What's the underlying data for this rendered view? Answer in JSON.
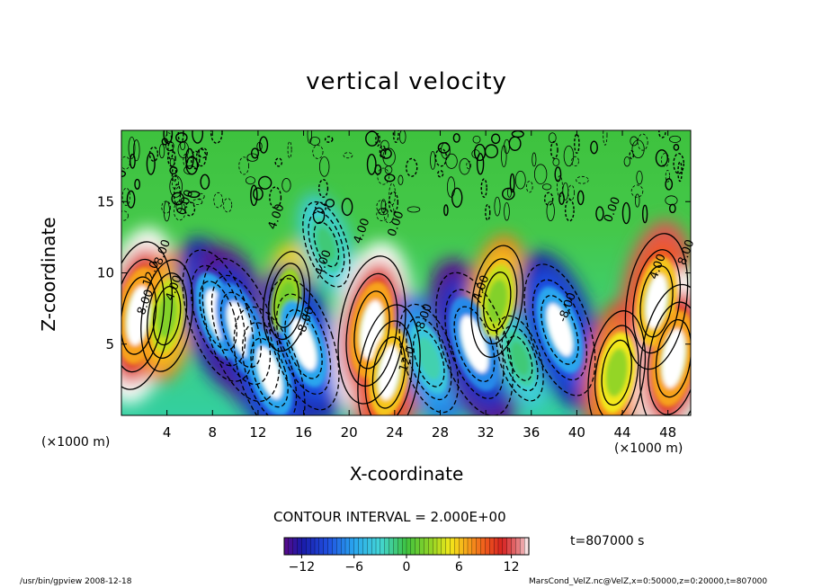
{
  "chart_data": {
    "type": "heatmap",
    "title": "vertical velocity",
    "xlabel": "X-coordinate",
    "ylabel": "Z-coordinate",
    "x_unit": "(×1000 m)",
    "y_unit": "(×1000 m)",
    "xlim": [
      0,
      50
    ],
    "ylim": [
      0,
      20
    ],
    "x_ticks": [
      4,
      8,
      12,
      16,
      20,
      24,
      28,
      32,
      36,
      40,
      44,
      48
    ],
    "y_ticks": [
      5,
      10,
      15
    ],
    "contour_interval_label": "CONTOUR INTERVAL = 2.000E+00",
    "contour_labels": [
      "4.00",
      "8.00",
      "12.0",
      "0.00",
      "-4.00",
      "-8.00",
      "4.00",
      "0.00",
      "8.00",
      "12.0",
      "4.00",
      "-8.00",
      "0.00",
      "4.00",
      "8.00",
      "8.00",
      "4.00"
    ],
    "colorbar": {
      "min": -14,
      "max": 14,
      "ticks": [
        "−12",
        "−6",
        "0",
        "6",
        "12"
      ]
    },
    "cells": [
      {
        "x": 1.5,
        "z": 7,
        "w": 14
      },
      {
        "x": 4,
        "z": 7,
        "w": 8
      },
      {
        "x": 8.5,
        "z": 7,
        "w": -12
      },
      {
        "x": 10.5,
        "z": 6,
        "w": -14
      },
      {
        "x": 13,
        "z": 3,
        "w": -12
      },
      {
        "x": 14.5,
        "z": 8,
        "w": 6
      },
      {
        "x": 16,
        "z": 5,
        "w": -12
      },
      {
        "x": 18,
        "z": 12,
        "w": -4
      },
      {
        "x": 22,
        "z": 6,
        "w": 14
      },
      {
        "x": 23.5,
        "z": 3,
        "w": 12
      },
      {
        "x": 27,
        "z": 4,
        "w": -8
      },
      {
        "x": 31,
        "z": 5,
        "w": -14
      },
      {
        "x": 33,
        "z": 8,
        "w": 8
      },
      {
        "x": 35,
        "z": 4,
        "w": -4
      },
      {
        "x": 38.5,
        "z": 6,
        "w": -12
      },
      {
        "x": 43.5,
        "z": 3,
        "w": 10
      },
      {
        "x": 47,
        "z": 8,
        "w": 12
      },
      {
        "x": 48.5,
        "z": 4,
        "w": 14
      }
    ],
    "grid": false,
    "legend": "colorbar-bottom"
  },
  "footer": {
    "left": "/usr/bin/gpview   2008-12-18",
    "right": "MarsCond_VelZ.nc@VelZ,x=0:50000,z=0:20000,t=807000"
  },
  "time_label": "t=807000  s"
}
